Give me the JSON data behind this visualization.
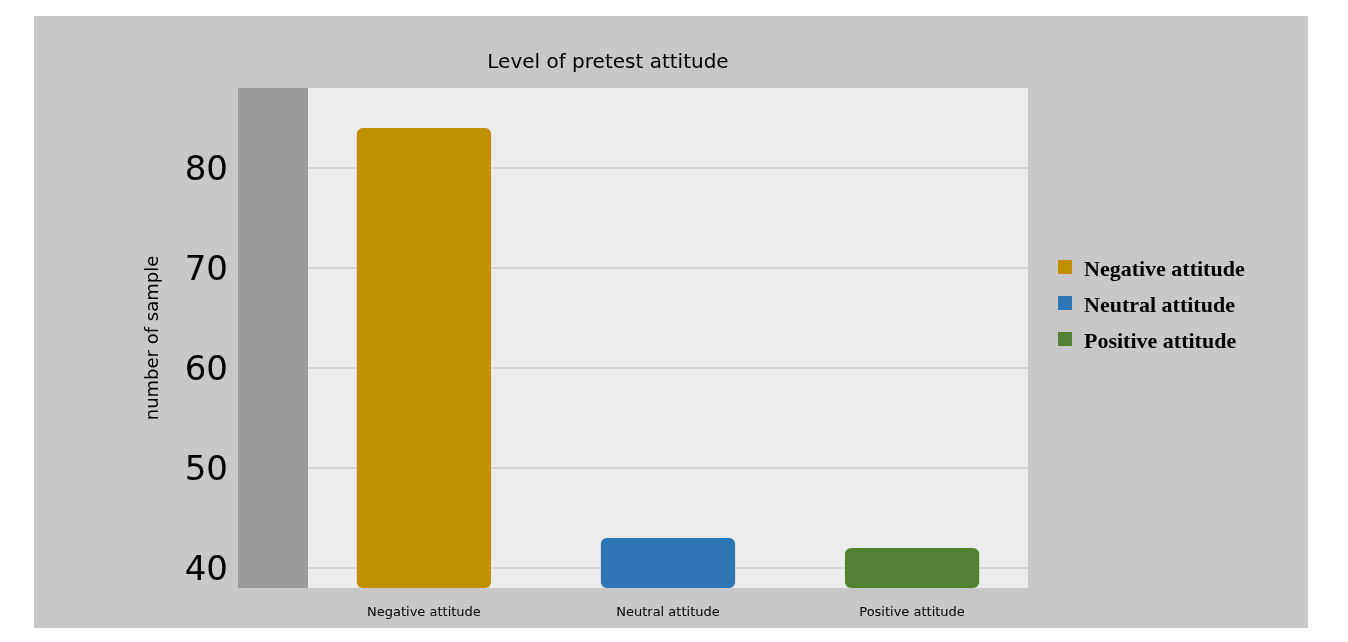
{
  "chart_data": {
    "type": "bar",
    "title": "Level of pretest attitude",
    "ylabel": "number of sample",
    "categories": [
      "Negative attitude",
      "Neutral attitude",
      "Positive attitude"
    ],
    "series": [
      {
        "name": "Negative attitude",
        "color": "#c09000",
        "values": [
          84,
          null,
          null
        ]
      },
      {
        "name": "Neutral attitude",
        "color": "#2e75b6",
        "values": [
          null,
          43,
          null
        ]
      },
      {
        "name": "Positive attitude",
        "color": "#548235",
        "values": [
          null,
          null,
          42
        ]
      }
    ],
    "ylim": [
      38,
      88
    ],
    "yticks": [
      40,
      50,
      60,
      70,
      80
    ],
    "grid": "y",
    "legend": "right"
  }
}
